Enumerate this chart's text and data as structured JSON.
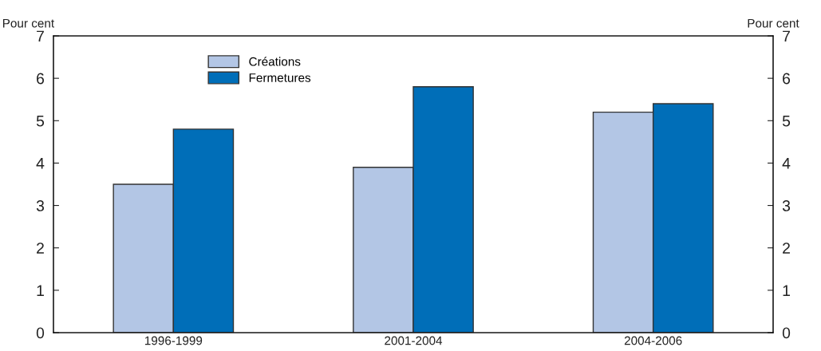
{
  "chart_data": {
    "type": "bar",
    "categories": [
      "1996-1999",
      "2001-2004",
      "2004-2006"
    ],
    "series": [
      {
        "name": "Créations",
        "color": "#b3c6e5",
        "values": [
          3.5,
          3.9,
          5.2
        ]
      },
      {
        "name": "Fermetures",
        "color": "#006eb8",
        "values": [
          4.8,
          5.8,
          5.4
        ]
      }
    ],
    "ylabel": "Pour cent",
    "y2label": "Pour cent",
    "ylim": [
      0,
      7
    ],
    "yticks": [
      0,
      1,
      2,
      3,
      4,
      5,
      6,
      7
    ],
    "y2lim": [
      0,
      7
    ],
    "y2ticks": [
      0,
      1,
      2,
      3,
      4,
      5,
      6,
      7
    ],
    "grid": false,
    "legend": "top left"
  }
}
